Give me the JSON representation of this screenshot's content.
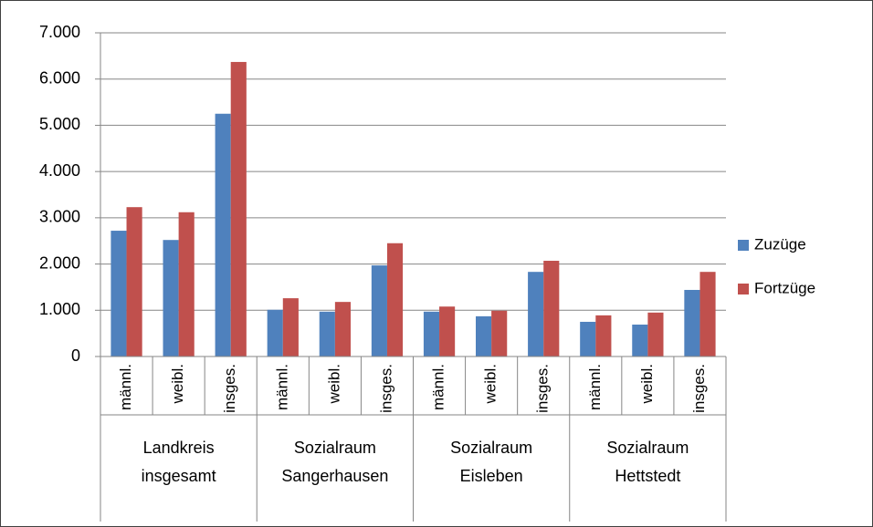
{
  "chart_data": {
    "type": "bar",
    "categories": [
      "männl.",
      "weibl.",
      "insges.",
      "männl.",
      "weibl.",
      "insges.",
      "männl.",
      "weibl.",
      "insges.",
      "männl.",
      "weibl.",
      "insges."
    ],
    "groups": [
      [
        "Landkreis",
        "insgesamt"
      ],
      [
        "Sozialraum",
        "Sangerhausen"
      ],
      [
        "Sozialraum",
        "Eisleben"
      ],
      [
        "Sozialraum",
        "Hettstedt"
      ]
    ],
    "series": [
      {
        "name": "Zuzüge",
        "color": "#4f81bd",
        "values": [
          2720,
          2520,
          5250,
          1010,
          970,
          1970,
          970,
          870,
          1830,
          750,
          690,
          1440
        ]
      },
      {
        "name": "Fortzüge",
        "color": "#c0504d",
        "values": [
          3230,
          3120,
          6370,
          1260,
          1180,
          2450,
          1080,
          990,
          2070,
          890,
          950,
          1830
        ]
      }
    ],
    "ylim": [
      0,
      7000
    ],
    "yticks": [
      0,
      {
        "value": 1000,
        "label": "1.000"
      },
      {
        "value": 2000,
        "label": "2.000"
      },
      {
        "value": 3000,
        "label": "3.000"
      },
      {
        "value": 4000,
        "label": "4.000"
      },
      {
        "value": 5000,
        "label": "5.000"
      },
      {
        "value": 6000,
        "label": "6.000"
      },
      {
        "value": 7000,
        "label": "7.000"
      }
    ],
    "grid": true,
    "legend": "right"
  }
}
